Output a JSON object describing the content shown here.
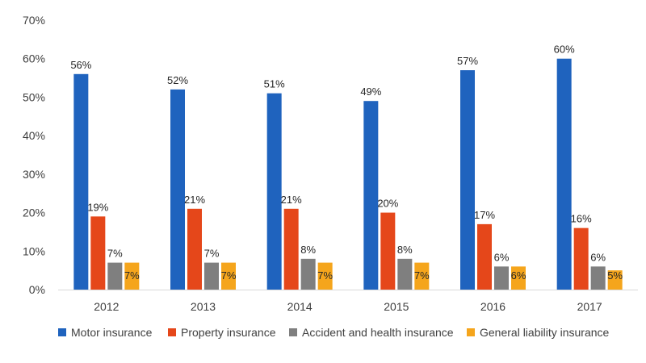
{
  "chart_data": {
    "type": "bar",
    "categories": [
      "2012",
      "2013",
      "2014",
      "2015",
      "2016",
      "2017"
    ],
    "y_ticks": [
      "0%",
      "10%",
      "20%",
      "30%",
      "40%",
      "50%",
      "60%",
      "70%"
    ],
    "ylim": [
      0,
      70
    ],
    "unit": "%",
    "grid": false,
    "legend_position": "bottom",
    "series": [
      {
        "name": "Motor insurance",
        "color": "#1F63BE",
        "values": [
          56,
          52,
          51,
          49,
          57,
          60
        ],
        "labels": [
          "56%",
          "52%",
          "51%",
          "49%",
          "57%",
          "60%"
        ]
      },
      {
        "name": "Property insurance",
        "color": "#E5471A",
        "values": [
          19,
          21,
          21,
          20,
          17,
          16
        ],
        "labels": [
          "19%",
          "21%",
          "21%",
          "20%",
          "17%",
          "16%"
        ]
      },
      {
        "name": "Accident and health insurance",
        "color": "#7F7F7F",
        "values": [
          7,
          7,
          8,
          8,
          6,
          6
        ],
        "labels": [
          "7%",
          "7%",
          "8%",
          "8%",
          "6%",
          "6%"
        ]
      },
      {
        "name": "General liability insurance",
        "color": "#F5A51C",
        "values": [
          7,
          7,
          7,
          7,
          6,
          5
        ],
        "labels": [
          "7%",
          "7%",
          "7%",
          "7%",
          "6%",
          "5%"
        ]
      }
    ]
  }
}
